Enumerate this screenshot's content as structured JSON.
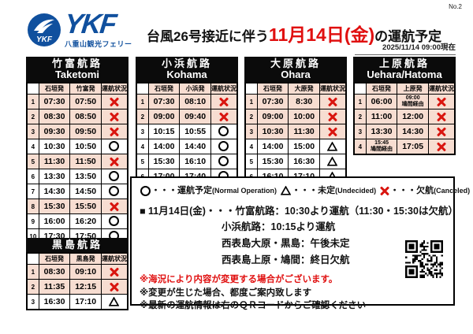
{
  "header": {
    "page_no": "No.2",
    "title_prefix": "台風26号接近に伴う",
    "title_date": "11月14日(金)",
    "title_suffix": "の運航予定",
    "timestamp": "2025/11/14  09:00現在",
    "logo_abbr": "YKF",
    "logo_company": "八重山観光フェリー"
  },
  "colors": {
    "brand_blue": "#10509e",
    "cancel_red": "#d9150f",
    "cancel_row_pink": "#f7ddd1",
    "title_red": "#e01010"
  },
  "legend": [
    {
      "symbol": "○",
      "label": "・・・運航予定",
      "en": "(Normal Operation)"
    },
    {
      "symbol": "△",
      "label": "・・・未定",
      "en": "(Undecided)"
    },
    {
      "symbol": "✕",
      "label": "・・・欠航",
      "en": "(Canceled)"
    }
  ],
  "tables": {
    "taketomi": {
      "title_jp": "竹富航路",
      "title_en": "Taketomi",
      "columns": [
        "石垣発",
        "竹富発",
        "運航状況"
      ],
      "rows": [
        {
          "no": "1",
          "dep": "07:30",
          "arr": "07:50",
          "status": "x"
        },
        {
          "no": "2",
          "dep": "08:30",
          "arr": "08:50",
          "status": "x"
        },
        {
          "no": "3",
          "dep": "09:30",
          "arr": "09:50",
          "status": "x"
        },
        {
          "no": "4",
          "dep": "10:30",
          "arr": "10:50",
          "status": "o"
        },
        {
          "no": "5",
          "dep": "11:30",
          "arr": "11:50",
          "status": "x"
        },
        {
          "no": "6",
          "dep": "13:30",
          "arr": "13:50",
          "status": "o"
        },
        {
          "no": "7",
          "dep": "14:30",
          "arr": "14:50",
          "status": "o"
        },
        {
          "no": "8",
          "dep": "15:30",
          "arr": "15:50",
          "status": "x"
        },
        {
          "no": "9",
          "dep": "16:00",
          "arr": "16:20",
          "status": "o"
        },
        {
          "no": "10",
          "dep": "17:30",
          "arr": "17:50",
          "status": "o"
        }
      ]
    },
    "kohama": {
      "title_jp": "小浜航路",
      "title_en": "Kohama",
      "columns": [
        "石垣発",
        "小浜発",
        "運航状況"
      ],
      "rows": [
        {
          "no": "1",
          "dep": "07:30",
          "arr": "08:10",
          "status": "x"
        },
        {
          "no": "2",
          "dep": "09:00",
          "arr": "09:40",
          "status": "x"
        },
        {
          "no": "3",
          "dep": "10:15",
          "arr": "10:55",
          "status": "o"
        },
        {
          "no": "4",
          "dep": "14:00",
          "arr": "14:40",
          "status": "o"
        },
        {
          "no": "5",
          "dep": "15:30",
          "arr": "16:10",
          "status": "o"
        },
        {
          "no": "6",
          "dep": "17:00",
          "arr": "17:40",
          "status": "o"
        }
      ]
    },
    "ohara": {
      "title_jp": "大原航路",
      "title_en": "Ohara",
      "columns": [
        "石垣発",
        "大原発",
        "運航状況"
      ],
      "rows": [
        {
          "no": "1",
          "dep": "07:30",
          "arr": "8:30",
          "status": "x"
        },
        {
          "no": "2",
          "dep": "09:00",
          "arr": "10:00",
          "status": "x"
        },
        {
          "no": "3",
          "dep": "10:30",
          "arr": "11:30",
          "status": "x"
        },
        {
          "no": "4",
          "dep": "14:00",
          "arr": "15:00",
          "status": "t"
        },
        {
          "no": "5",
          "dep": "15:30",
          "arr": "16:30",
          "status": "t"
        },
        {
          "no": "6",
          "dep": "16:10",
          "arr": "17:10",
          "status": "t"
        }
      ]
    },
    "uehara": {
      "title_jp": "上原航路",
      "title_en": "Uehara/Hatoma",
      "columns": [
        "石垣発",
        "上原発",
        "運航状況"
      ],
      "rows": [
        {
          "no": "1",
          "dep": "06:00",
          "arr": "09:00",
          "arr_sub": "鳩間経由",
          "status": "x"
        },
        {
          "no": "2",
          "dep": "11:00",
          "arr": "12:00",
          "status": "x"
        },
        {
          "no": "3",
          "dep": "13:30",
          "arr": "14:30",
          "status": "x"
        },
        {
          "no": "4",
          "dep": "15:45",
          "dep_sub": "鳩間経由",
          "arr": "17:05",
          "status": "x"
        }
      ]
    },
    "kuroshima": {
      "title_jp": "黒島航路",
      "title_en": "",
      "columns": [
        "石垣発",
        "黒島発",
        "運航状況"
      ],
      "rows": [
        {
          "no": "1",
          "dep": "08:30",
          "arr": "09:10",
          "status": "x"
        },
        {
          "no": "2",
          "dep": "11:35",
          "arr": "12:15",
          "status": "x"
        },
        {
          "no": "3",
          "dep": "16:30",
          "arr": "17:10",
          "status": "t"
        }
      ]
    }
  },
  "notice": {
    "schedule_prefix": "■ 11月14日(金)・・・",
    "schedule_lines": [
      "竹富航路：10:30より運航（11:30・15:30は欠航）",
      "小浜航路：10:15より運航",
      "西表島大原・黒島：午後未定",
      "西表島上原・鳩間：終日欠航"
    ],
    "warning_red": "※海況により内容が変更する場合がございます。",
    "warning_lines": [
      "※変更が生じた場合、都度ご案内致します",
      "※最新の運航情報は右のＱＲコードからご確認ください"
    ]
  }
}
